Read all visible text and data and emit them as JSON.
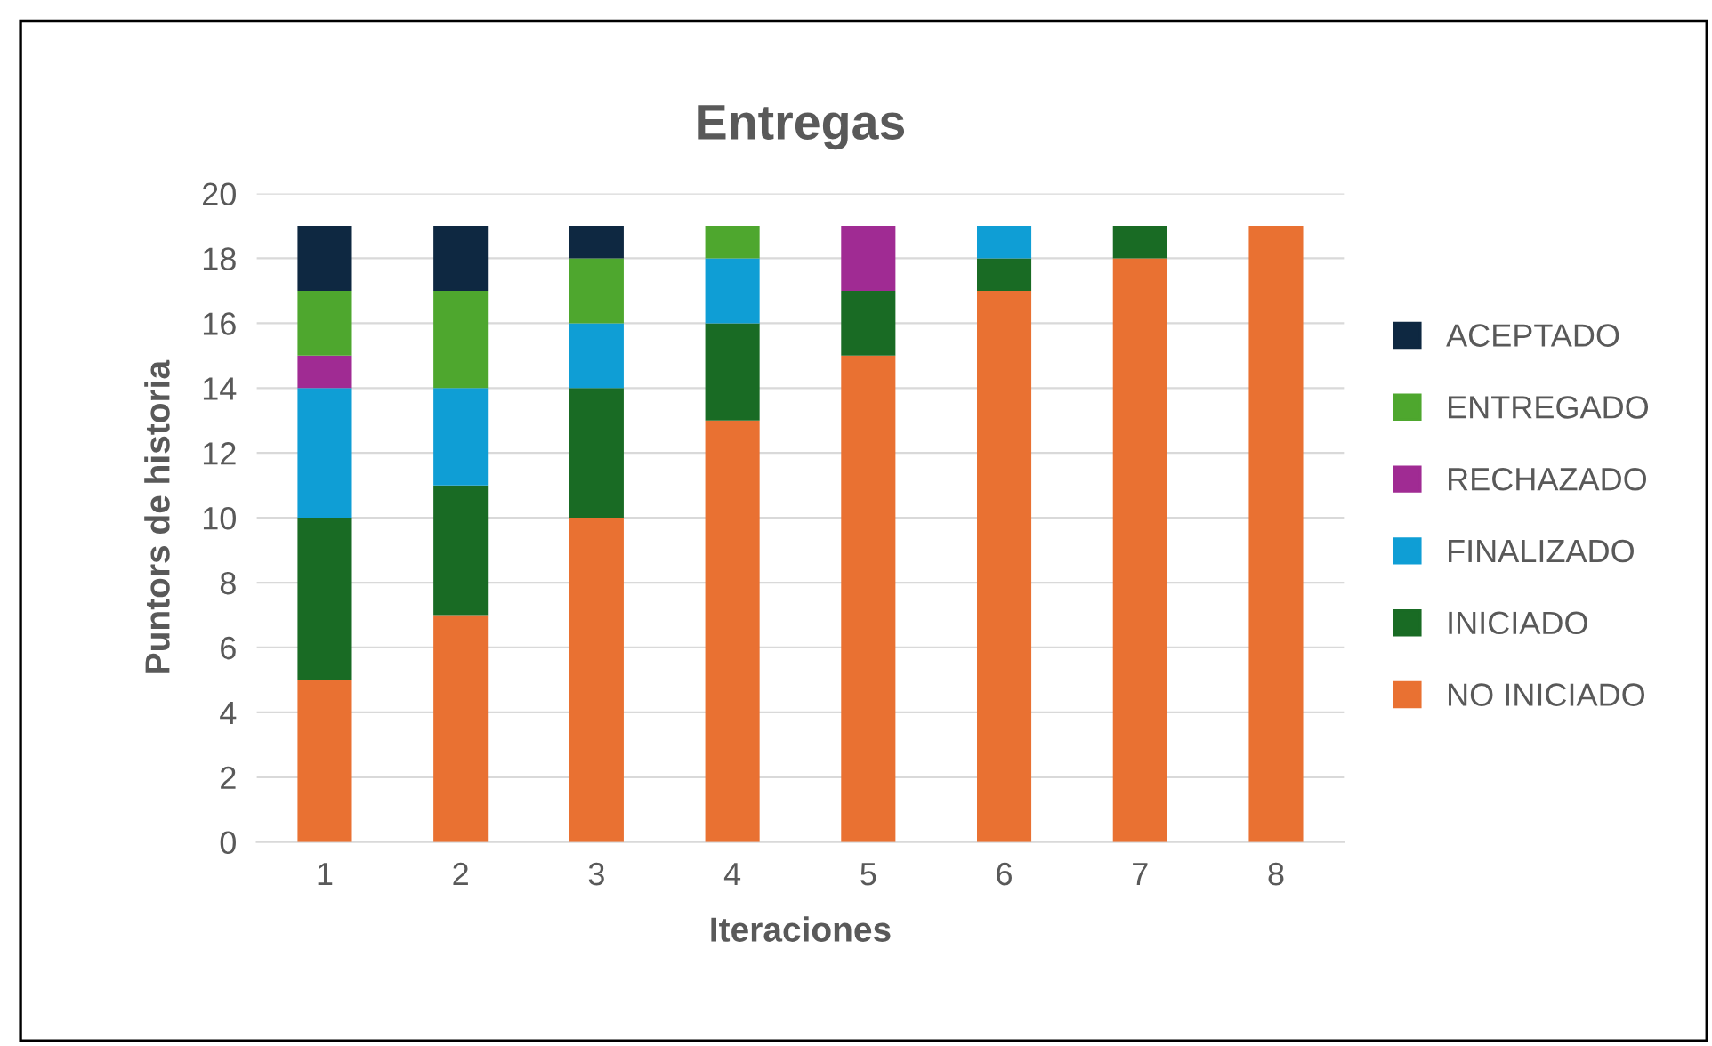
{
  "chart_data": {
    "type": "bar",
    "title": "Entregas",
    "xlabel": "Iteraciones",
    "ylabel": "Puntors de historia",
    "categories": [
      "1",
      "2",
      "3",
      "4",
      "5",
      "6",
      "7",
      "8"
    ],
    "stacked": true,
    "ylim": [
      0,
      20
    ],
    "yticks": [
      0,
      2,
      4,
      6,
      8,
      10,
      12,
      14,
      16,
      18,
      20
    ],
    "grid": "y",
    "legend": "right",
    "series": [
      {
        "name": "NO INICIADO",
        "color": "#e97132",
        "values": [
          5,
          7,
          10,
          13,
          15,
          17,
          18,
          19
        ]
      },
      {
        "name": "INICIADO",
        "color": "#196b24",
        "values": [
          5,
          4,
          4,
          3,
          2,
          1,
          1,
          0
        ]
      },
      {
        "name": "FINALIZADO",
        "color": "#0f9ed5",
        "values": [
          4,
          3,
          2,
          2,
          0,
          1,
          0,
          0
        ]
      },
      {
        "name": "RECHAZADO",
        "color": "#a02b93",
        "values": [
          1,
          0,
          0,
          0,
          2,
          0,
          0,
          0
        ]
      },
      {
        "name": "ENTREGADO",
        "color": "#4ea72e",
        "values": [
          2,
          3,
          2,
          1,
          0,
          0,
          0,
          0
        ]
      },
      {
        "name": "ACEPTADO",
        "color": "#0e2841",
        "values": [
          2,
          2,
          1,
          0,
          0,
          0,
          0,
          0
        ]
      }
    ]
  }
}
